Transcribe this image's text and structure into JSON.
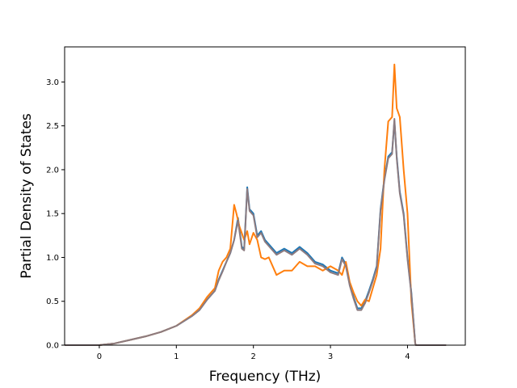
{
  "chart_data": {
    "type": "line",
    "title": "",
    "xlabel": "Frequency (THz)",
    "ylabel": "Partial Density of States",
    "xlim": [
      -0.45,
      4.75
    ],
    "ylim": [
      0,
      3.4
    ],
    "xticks": [
      0,
      1,
      2,
      3,
      4
    ],
    "yticks": [
      0.0,
      0.5,
      1.0,
      1.5,
      2.0,
      2.5,
      3.0
    ],
    "xtick_labels": [
      "0",
      "1",
      "2",
      "3",
      "4"
    ],
    "ytick_labels": [
      "0.0",
      "0.5",
      "1.0",
      "1.5",
      "2.0",
      "2.5",
      "3.0"
    ],
    "grid": false,
    "legend": "none",
    "series": [
      {
        "color": "#1f77b4",
        "x": [
          -0.45,
          -0.2,
          0,
          0.2,
          0.4,
          0.6,
          0.8,
          1.0,
          1.2,
          1.3,
          1.4,
          1.5,
          1.55,
          1.6,
          1.65,
          1.7,
          1.75,
          1.8,
          1.85,
          1.88,
          1.92,
          1.95,
          2.0,
          2.05,
          2.1,
          2.15,
          2.2,
          2.3,
          2.4,
          2.5,
          2.6,
          2.7,
          2.8,
          2.9,
          3.0,
          3.1,
          3.15,
          3.2,
          3.25,
          3.3,
          3.35,
          3.4,
          3.45,
          3.5,
          3.55,
          3.6,
          3.65,
          3.7,
          3.75,
          3.8,
          3.83,
          3.86,
          3.9,
          3.95,
          4.0,
          4.05,
          4.1,
          4.11,
          4.2,
          4.5
        ],
        "y": [
          0,
          0,
          0.0,
          0.02,
          0.06,
          0.1,
          0.15,
          0.22,
          0.33,
          0.4,
          0.52,
          0.62,
          0.75,
          0.85,
          0.95,
          1.05,
          1.2,
          1.45,
          1.12,
          1.1,
          1.8,
          1.55,
          1.5,
          1.25,
          1.3,
          1.2,
          1.15,
          1.05,
          1.1,
          1.05,
          1.12,
          1.05,
          0.95,
          0.92,
          0.85,
          0.82,
          1.0,
          0.92,
          0.7,
          0.55,
          0.42,
          0.42,
          0.5,
          0.62,
          0.75,
          0.9,
          1.55,
          1.9,
          2.15,
          2.2,
          2.55,
          2.15,
          1.75,
          1.5,
          1.0,
          0.6,
          0.02,
          0,
          0,
          0
        ]
      },
      {
        "color": "#ff7f0e",
        "x": [
          -0.45,
          -0.2,
          0,
          0.2,
          0.4,
          0.6,
          0.8,
          1.0,
          1.2,
          1.3,
          1.4,
          1.5,
          1.55,
          1.6,
          1.65,
          1.7,
          1.75,
          1.78,
          1.82,
          1.88,
          1.92,
          1.95,
          2.0,
          2.05,
          2.1,
          2.15,
          2.2,
          2.3,
          2.4,
          2.5,
          2.6,
          2.7,
          2.8,
          2.9,
          3.0,
          3.1,
          3.15,
          3.2,
          3.25,
          3.3,
          3.35,
          3.4,
          3.45,
          3.5,
          3.55,
          3.6,
          3.65,
          3.7,
          3.75,
          3.8,
          3.83,
          3.86,
          3.9,
          3.95,
          4.0,
          4.05,
          4.1,
          4.11,
          4.2,
          4.5
        ],
        "y": [
          0,
          0,
          0.0,
          0.02,
          0.06,
          0.1,
          0.15,
          0.22,
          0.34,
          0.42,
          0.55,
          0.65,
          0.85,
          0.95,
          1.0,
          1.1,
          1.6,
          1.5,
          1.35,
          1.2,
          1.3,
          1.15,
          1.28,
          1.2,
          1.0,
          0.98,
          1.0,
          0.8,
          0.85,
          0.85,
          0.95,
          0.9,
          0.9,
          0.85,
          0.9,
          0.85,
          0.8,
          0.95,
          0.72,
          0.6,
          0.5,
          0.45,
          0.52,
          0.5,
          0.65,
          0.8,
          1.1,
          2.0,
          2.55,
          2.6,
          3.2,
          2.7,
          2.6,
          2.0,
          1.5,
          0.5,
          0.02,
          0,
          0,
          0
        ]
      },
      {
        "color": "#8c7b80",
        "x": [
          -0.45,
          -0.2,
          0,
          0.2,
          0.4,
          0.6,
          0.8,
          1.0,
          1.2,
          1.3,
          1.4,
          1.5,
          1.55,
          1.6,
          1.65,
          1.7,
          1.75,
          1.8,
          1.85,
          1.88,
          1.92,
          1.95,
          2.0,
          2.05,
          2.1,
          2.15,
          2.2,
          2.3,
          2.4,
          2.5,
          2.6,
          2.7,
          2.8,
          2.9,
          3.0,
          3.1,
          3.15,
          3.2,
          3.25,
          3.3,
          3.35,
          3.4,
          3.45,
          3.5,
          3.55,
          3.6,
          3.65,
          3.7,
          3.75,
          3.8,
          3.83,
          3.86,
          3.9,
          3.95,
          4.0,
          4.05,
          4.1,
          4.11,
          4.2,
          4.5
        ],
        "y": [
          0,
          0,
          0.0,
          0.02,
          0.06,
          0.1,
          0.15,
          0.22,
          0.33,
          0.4,
          0.52,
          0.62,
          0.74,
          0.84,
          0.95,
          1.05,
          1.2,
          1.42,
          1.1,
          1.08,
          1.78,
          1.53,
          1.48,
          1.23,
          1.28,
          1.18,
          1.13,
          1.03,
          1.08,
          1.03,
          1.1,
          1.03,
          0.93,
          0.9,
          0.83,
          0.8,
          0.98,
          0.9,
          0.68,
          0.53,
          0.4,
          0.4,
          0.48,
          0.6,
          0.73,
          0.88,
          1.53,
          1.88,
          2.13,
          2.18,
          2.58,
          2.13,
          1.73,
          1.48,
          0.98,
          0.58,
          0.02,
          0,
          0,
          0
        ]
      }
    ]
  }
}
